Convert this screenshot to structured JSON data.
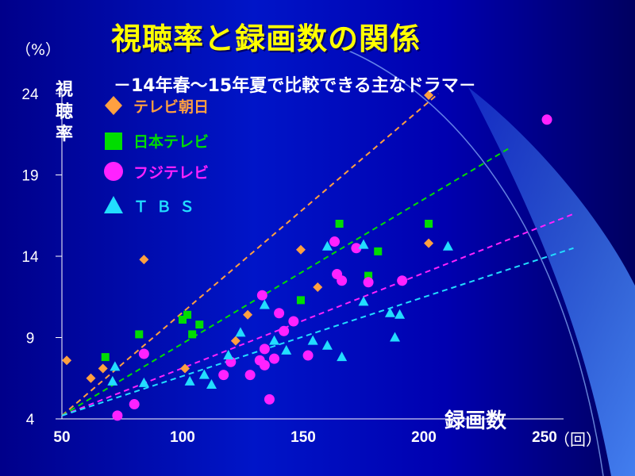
{
  "title": "視聴率と録画数の関係",
  "subtitle": "－14年春～15年夏で比較できる主なドラマ－",
  "y_unit": "（%）",
  "y_label": "視聴率",
  "x_label": "録画数",
  "x_unit": "（回）",
  "legend": [
    {
      "label": "テレビ朝日",
      "icon": "diamond-icon",
      "color": "#ffa040"
    },
    {
      "label": "日本テレビ",
      "icon": "square-icon",
      "color": "#00dd00"
    },
    {
      "label": "フジテレビ",
      "icon": "circle-icon",
      "color": "#ff22ff"
    },
    {
      "label": "ＴＢＳ",
      "icon": "triangle-icon",
      "color": "#22ddff"
    }
  ],
  "chart_data": {
    "type": "scatter",
    "title": "視聴率と録画数の関係",
    "subtitle": "－14年春～15年夏で比較できる主なドラマ－",
    "xlabel": "録画数",
    "ylabel": "視聴率",
    "x_unit": "（回）",
    "y_unit": "（%）",
    "xlim": [
      50,
      270
    ],
    "ylim": [
      4,
      25
    ],
    "x_ticks": [
      50,
      100,
      150,
      200,
      250
    ],
    "x_tick_labels": [
      "50",
      "100",
      "150",
      "200",
      "250"
    ],
    "y_ticks": [
      4,
      9,
      14,
      19,
      24
    ],
    "y_tick_labels": [
      "4",
      "9",
      "14",
      "19",
      "24"
    ],
    "grid": false,
    "legend_position": "top-left",
    "series": [
      {
        "name": "テレビ朝日",
        "marker": "diamond",
        "color": "#ffa040",
        "points": [
          [
            52,
            7.6
          ],
          [
            62,
            6.5
          ],
          [
            67,
            7.1
          ],
          [
            84,
            13.8
          ],
          [
            101,
            7.1
          ],
          [
            122,
            8.8
          ],
          [
            127,
            10.4
          ],
          [
            149,
            14.4
          ],
          [
            156,
            12.1
          ],
          [
            202,
            23.9
          ],
          [
            202,
            14.8
          ]
        ],
        "trend": [
          [
            50,
            4.2
          ],
          [
            206,
            24.0
          ]
        ]
      },
      {
        "name": "日本テレビ",
        "marker": "square",
        "color": "#00dd00",
        "points": [
          [
            68,
            7.8
          ],
          [
            82,
            9.2
          ],
          [
            100,
            10.1
          ],
          [
            102,
            10.4
          ],
          [
            104,
            9.2
          ],
          [
            107,
            9.8
          ],
          [
            149,
            11.3
          ],
          [
            165,
            16.0
          ],
          [
            177,
            12.8
          ],
          [
            181,
            14.3
          ],
          [
            202,
            16.0
          ]
        ],
        "trend": [
          [
            50,
            4.2
          ],
          [
            236,
            20.7
          ]
        ]
      },
      {
        "name": "フジテレビ",
        "marker": "circle",
        "color": "#ff22ff",
        "points": [
          [
            73,
            4.2
          ],
          [
            80,
            4.9
          ],
          [
            84,
            8.0
          ],
          [
            117,
            6.7
          ],
          [
            120,
            7.5
          ],
          [
            128,
            6.7
          ],
          [
            132,
            7.6
          ],
          [
            133,
            11.6
          ],
          [
            134,
            8.3
          ],
          [
            134,
            7.3
          ],
          [
            136,
            5.2
          ],
          [
            138,
            7.7
          ],
          [
            140,
            10.5
          ],
          [
            142,
            9.4
          ],
          [
            146,
            10.0
          ],
          [
            152,
            7.9
          ],
          [
            163,
            14.9
          ],
          [
            164,
            12.9
          ],
          [
            166,
            12.5
          ],
          [
            172,
            14.5
          ],
          [
            177,
            12.4
          ],
          [
            191,
            12.5
          ],
          [
            251,
            22.4
          ]
        ],
        "trend": [
          [
            50,
            4.2
          ],
          [
            262,
            16.6
          ]
        ]
      },
      {
        "name": "ＴＢＳ",
        "marker": "triangle",
        "color": "#22ddff",
        "points": [
          [
            71,
            6.3
          ],
          [
            72,
            7.2
          ],
          [
            84,
            6.2
          ],
          [
            103,
            6.3
          ],
          [
            109,
            6.7
          ],
          [
            112,
            6.1
          ],
          [
            119,
            7.9
          ],
          [
            124,
            9.3
          ],
          [
            134,
            11.0
          ],
          [
            138,
            8.8
          ],
          [
            143,
            8.2
          ],
          [
            154,
            8.8
          ],
          [
            160,
            8.5
          ],
          [
            160,
            14.6
          ],
          [
            166,
            7.8
          ],
          [
            175,
            11.2
          ],
          [
            175,
            14.7
          ],
          [
            186,
            10.5
          ],
          [
            188,
            9.0
          ],
          [
            190,
            10.4
          ],
          [
            210,
            14.6
          ]
        ],
        "trend": [
          [
            50,
            4.2
          ],
          [
            262,
            14.5
          ]
        ]
      }
    ]
  }
}
